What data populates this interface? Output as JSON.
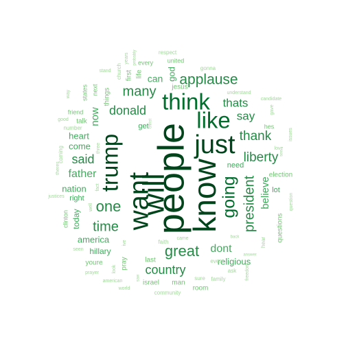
{
  "word_cloud": {
    "colors": {
      "dark": "#00441b",
      "deep": "#006d2c",
      "mid": "#238b45",
      "light": "#41ab5d",
      "pale": "#74c476",
      "faint": "#a1d99b"
    },
    "words": [
      {
        "text": "people",
        "tone": "dark",
        "rank": 1
      },
      {
        "text": "know",
        "tone": "dark",
        "rank": 2
      },
      {
        "text": "will",
        "tone": "dark",
        "rank": 3
      },
      {
        "text": "want",
        "tone": "dark",
        "rank": 4
      },
      {
        "text": "trump",
        "tone": "dark",
        "rank": 5
      },
      {
        "text": "just",
        "tone": "dark",
        "rank": 6
      },
      {
        "text": "think",
        "tone": "deep",
        "rank": 7
      },
      {
        "text": "like",
        "tone": "deep",
        "rank": 8
      },
      {
        "text": "going",
        "tone": "deep",
        "rank": 9
      },
      {
        "text": "president",
        "tone": "mid",
        "rank": 10
      },
      {
        "text": "applause",
        "tone": "mid",
        "rank": 11
      },
      {
        "text": "great",
        "tone": "mid",
        "rank": 12
      },
      {
        "text": "one",
        "tone": "mid",
        "rank": 13
      },
      {
        "text": "time",
        "tone": "mid",
        "rank": 14
      },
      {
        "text": "many",
        "tone": "mid",
        "rank": 15
      },
      {
        "text": "liberty",
        "tone": "mid",
        "rank": 16
      },
      {
        "text": "country",
        "tone": "mid",
        "rank": 17
      },
      {
        "text": "thank",
        "tone": "mid",
        "rank": 18
      },
      {
        "text": "said",
        "tone": "mid",
        "rank": 19
      },
      {
        "text": "donald",
        "tone": "mid",
        "rank": 20
      },
      {
        "text": "thats",
        "tone": "mid",
        "rank": 21
      },
      {
        "text": "say",
        "tone": "mid",
        "rank": 22
      },
      {
        "text": "father",
        "tone": "light",
        "rank": 23
      },
      {
        "text": "believe",
        "tone": "light",
        "rank": 24
      },
      {
        "text": "dont",
        "tone": "light",
        "rank": 25
      },
      {
        "text": "now",
        "tone": "light",
        "rank": 26
      },
      {
        "text": "nation",
        "tone": "light",
        "rank": 27
      },
      {
        "text": "america",
        "tone": "light",
        "rank": 28
      },
      {
        "text": "religious",
        "tone": "light",
        "rank": 29
      },
      {
        "text": "heart",
        "tone": "light",
        "rank": 30
      },
      {
        "text": "come",
        "tone": "light",
        "rank": 31
      },
      {
        "text": "god",
        "tone": "light",
        "rank": 32
      },
      {
        "text": "can",
        "tone": "light",
        "rank": 33
      },
      {
        "text": "hillary",
        "tone": "light",
        "rank": 34
      },
      {
        "text": "today",
        "tone": "light",
        "rank": 35
      },
      {
        "text": "right",
        "tone": "light",
        "rank": 36
      },
      {
        "text": "need",
        "tone": "light",
        "rank": 37
      },
      {
        "text": "lot",
        "tone": "light",
        "rank": 38
      },
      {
        "text": "get",
        "tone": "light",
        "rank": 39
      },
      {
        "text": "election",
        "tone": "pale",
        "rank": 40
      },
      {
        "text": "questions",
        "tone": "pale",
        "rank": 41
      },
      {
        "text": "jesus",
        "tone": "pale",
        "rank": 42
      },
      {
        "text": "first",
        "tone": "pale",
        "rank": 43
      },
      {
        "text": "life",
        "tone": "pale",
        "rank": 44
      },
      {
        "text": "things",
        "tone": "pale",
        "rank": 45
      },
      {
        "text": "pray",
        "tone": "pale",
        "rank": 46
      },
      {
        "text": "youre",
        "tone": "pale",
        "rank": 47
      },
      {
        "text": "last",
        "tone": "pale",
        "rank": 48
      },
      {
        "text": "israel",
        "tone": "pale",
        "rank": 49
      },
      {
        "text": "man",
        "tone": "pale",
        "rank": 50
      },
      {
        "text": "room",
        "tone": "pale",
        "rank": 51
      },
      {
        "text": "talk",
        "tone": "pale",
        "rank": 52
      },
      {
        "text": "friend",
        "tone": "pale",
        "rank": 53
      },
      {
        "text": "next",
        "tone": "pale",
        "rank": 54
      },
      {
        "text": "states",
        "tone": "pale",
        "rank": 55
      },
      {
        "text": "clinton",
        "tone": "pale",
        "rank": 56
      },
      {
        "text": "hes",
        "tone": "pale",
        "rank": 57
      },
      {
        "text": "united",
        "tone": "pale",
        "rank": 58
      },
      {
        "text": "every",
        "tone": "pale",
        "rank": 59
      },
      {
        "text": "respect",
        "tone": "faint",
        "rank": 60
      },
      {
        "text": "church",
        "tone": "faint",
        "rank": 61
      },
      {
        "text": "years",
        "tone": "faint",
        "rank": 62
      },
      {
        "text": "probably",
        "tone": "faint",
        "rank": 63
      },
      {
        "text": "gonna",
        "tone": "faint",
        "rank": 64
      },
      {
        "text": "stand",
        "tone": "faint",
        "rank": 65
      },
      {
        "text": "way",
        "tone": "faint",
        "rank": 66
      },
      {
        "text": "good",
        "tone": "faint",
        "rank": 67
      },
      {
        "text": "number",
        "tone": "faint",
        "rank": 68
      },
      {
        "text": "coming",
        "tone": "faint",
        "rank": 69
      },
      {
        "text": "theres",
        "tone": "faint",
        "rank": 70
      },
      {
        "text": "justices",
        "tone": "faint",
        "rank": 71
      },
      {
        "text": "three",
        "tone": "faint",
        "rank": 72
      },
      {
        "text": "christ",
        "tone": "faint",
        "rank": 73
      },
      {
        "text": "fact",
        "tone": "faint",
        "rank": 74
      },
      {
        "text": "well",
        "tone": "faint",
        "rank": 75
      },
      {
        "text": "ive",
        "tone": "faint",
        "rank": 76
      },
      {
        "text": "faith",
        "tone": "faint",
        "rank": 77
      },
      {
        "text": "came",
        "tone": "faint",
        "rank": 78
      },
      {
        "text": "back",
        "tone": "faint",
        "rank": 79
      },
      {
        "text": "hear",
        "tone": "faint",
        "rank": 80
      },
      {
        "text": "answer",
        "tone": "faint",
        "rank": 81
      },
      {
        "text": "ask",
        "tone": "faint",
        "rank": 82
      },
      {
        "text": "even",
        "tone": "faint",
        "rank": 83
      },
      {
        "text": "freedom",
        "tone": "faint",
        "rank": 84
      },
      {
        "text": "sure",
        "tone": "faint",
        "rank": 85
      },
      {
        "text": "family",
        "tone": "faint",
        "rank": 86
      },
      {
        "text": "community",
        "tone": "faint",
        "rank": 87
      },
      {
        "text": "world",
        "tone": "faint",
        "rank": 88
      },
      {
        "text": "american",
        "tone": "faint",
        "rank": 89
      },
      {
        "text": "prayer",
        "tone": "faint",
        "rank": 90
      },
      {
        "text": "seen",
        "tone": "faint",
        "rank": 91
      },
      {
        "text": "look",
        "tone": "faint",
        "rank": 92
      },
      {
        "text": "saw",
        "tone": "faint",
        "rank": 93
      },
      {
        "text": "understand",
        "tone": "faint",
        "rank": 94
      },
      {
        "text": "candidate",
        "tone": "faint",
        "rank": 95
      },
      {
        "text": "gave",
        "tone": "faint",
        "rank": 96
      },
      {
        "text": "issues",
        "tone": "faint",
        "rank": 97
      },
      {
        "text": "love",
        "tone": "faint",
        "rank": 98
      },
      {
        "text": "see",
        "tone": "faint",
        "rank": 99
      },
      {
        "text": "question",
        "tone": "faint",
        "rank": 100
      }
    ]
  }
}
